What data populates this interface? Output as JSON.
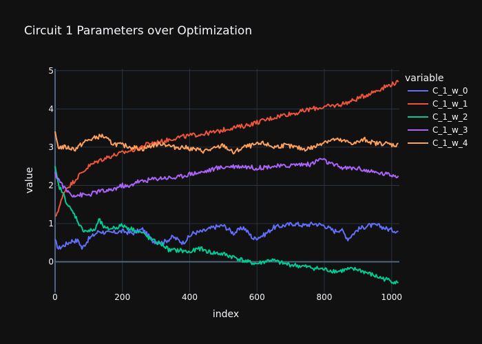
{
  "chart_data": {
    "type": "line",
    "title": "Circuit 1 Parameters over Optimization",
    "xlabel": "index",
    "ylabel": "value",
    "xlim": [
      0,
      1023
    ],
    "ylim": [
      -0.8,
      5.05
    ],
    "x_ticks": [
      "0",
      "200",
      "400",
      "600",
      "800",
      "1000"
    ],
    "y_ticks": [
      "0",
      "1",
      "2",
      "3",
      "4",
      "5"
    ],
    "grid": true,
    "legend": {
      "title": "variable",
      "position": "right"
    },
    "background": "#111111",
    "gridColor": "#283442",
    "series": [
      {
        "name": "C_1_w_0",
        "color": "#636efa",
        "points": [
          [
            0,
            0.55
          ],
          [
            10,
            0.35
          ],
          [
            30,
            0.45
          ],
          [
            50,
            0.55
          ],
          [
            70,
            0.55
          ],
          [
            80,
            0.35
          ],
          [
            100,
            0.6
          ],
          [
            130,
            0.8
          ],
          [
            160,
            0.75
          ],
          [
            200,
            0.8
          ],
          [
            230,
            0.75
          ],
          [
            260,
            0.85
          ],
          [
            290,
            0.55
          ],
          [
            320,
            0.5
          ],
          [
            350,
            0.65
          ],
          [
            380,
            0.5
          ],
          [
            410,
            0.75
          ],
          [
            440,
            0.8
          ],
          [
            470,
            0.9
          ],
          [
            500,
            0.95
          ],
          [
            530,
            0.75
          ],
          [
            560,
            0.9
          ],
          [
            590,
            0.6
          ],
          [
            620,
            0.7
          ],
          [
            650,
            0.9
          ],
          [
            680,
            0.95
          ],
          [
            710,
            1.0
          ],
          [
            740,
            0.95
          ],
          [
            770,
            1.0
          ],
          [
            800,
            0.95
          ],
          [
            830,
            0.8
          ],
          [
            850,
            0.85
          ],
          [
            870,
            0.6
          ],
          [
            900,
            0.85
          ],
          [
            930,
            0.95
          ],
          [
            960,
            0.95
          ],
          [
            990,
            0.85
          ],
          [
            1020,
            0.8
          ]
        ]
      },
      {
        "name": "C_1_w_1",
        "color": "#ef553b",
        "points": [
          [
            0,
            1.15
          ],
          [
            15,
            1.5
          ],
          [
            30,
            1.9
          ],
          [
            50,
            2.05
          ],
          [
            70,
            2.25
          ],
          [
            100,
            2.5
          ],
          [
            130,
            2.65
          ],
          [
            160,
            2.75
          ],
          [
            200,
            2.85
          ],
          [
            240,
            2.95
          ],
          [
            280,
            3.1
          ],
          [
            320,
            3.15
          ],
          [
            360,
            3.25
          ],
          [
            400,
            3.3
          ],
          [
            440,
            3.35
          ],
          [
            480,
            3.4
          ],
          [
            520,
            3.5
          ],
          [
            560,
            3.55
          ],
          [
            600,
            3.65
          ],
          [
            640,
            3.75
          ],
          [
            680,
            3.85
          ],
          [
            720,
            3.9
          ],
          [
            760,
            4.0
          ],
          [
            800,
            4.05
          ],
          [
            840,
            4.1
          ],
          [
            880,
            4.2
          ],
          [
            920,
            4.35
          ],
          [
            960,
            4.5
          ],
          [
            1000,
            4.65
          ],
          [
            1020,
            4.7
          ]
        ]
      },
      {
        "name": "C_1_w_2",
        "color": "#00cc96",
        "points": [
          [
            0,
            2.45
          ],
          [
            10,
            2.0
          ],
          [
            20,
            1.85
          ],
          [
            40,
            1.45
          ],
          [
            60,
            1.2
          ],
          [
            80,
            0.85
          ],
          [
            100,
            0.8
          ],
          [
            120,
            0.85
          ],
          [
            130,
            1.1
          ],
          [
            150,
            0.85
          ],
          [
            180,
            0.9
          ],
          [
            200,
            0.95
          ],
          [
            230,
            0.85
          ],
          [
            260,
            0.75
          ],
          [
            290,
            0.55
          ],
          [
            320,
            0.45
          ],
          [
            340,
            0.3
          ],
          [
            370,
            0.3
          ],
          [
            400,
            0.25
          ],
          [
            430,
            0.35
          ],
          [
            460,
            0.25
          ],
          [
            500,
            0.2
          ],
          [
            540,
            0.1
          ],
          [
            570,
            0.0
          ],
          [
            600,
            -0.05
          ],
          [
            640,
            0.05
          ],
          [
            680,
            -0.05
          ],
          [
            720,
            -0.1
          ],
          [
            760,
            -0.15
          ],
          [
            800,
            -0.2
          ],
          [
            840,
            -0.25
          ],
          [
            870,
            -0.2
          ],
          [
            900,
            -0.2
          ],
          [
            930,
            -0.3
          ],
          [
            960,
            -0.4
          ],
          [
            1000,
            -0.5
          ],
          [
            1020,
            -0.55
          ]
        ]
      },
      {
        "name": "C_1_w_3",
        "color": "#ab63fa",
        "points": [
          [
            0,
            2.3
          ],
          [
            15,
            2.1
          ],
          [
            30,
            1.9
          ],
          [
            50,
            1.75
          ],
          [
            70,
            1.75
          ],
          [
            100,
            1.75
          ],
          [
            130,
            1.85
          ],
          [
            160,
            1.85
          ],
          [
            200,
            2.0
          ],
          [
            220,
            1.95
          ],
          [
            240,
            2.1
          ],
          [
            260,
            2.1
          ],
          [
            280,
            2.15
          ],
          [
            320,
            2.2
          ],
          [
            360,
            2.2
          ],
          [
            400,
            2.3
          ],
          [
            440,
            2.35
          ],
          [
            480,
            2.45
          ],
          [
            520,
            2.5
          ],
          [
            560,
            2.5
          ],
          [
            600,
            2.45
          ],
          [
            640,
            2.5
          ],
          [
            680,
            2.5
          ],
          [
            720,
            2.55
          ],
          [
            760,
            2.55
          ],
          [
            790,
            2.7
          ],
          [
            820,
            2.55
          ],
          [
            860,
            2.45
          ],
          [
            900,
            2.45
          ],
          [
            940,
            2.35
          ],
          [
            980,
            2.3
          ],
          [
            1020,
            2.25
          ]
        ]
      },
      {
        "name": "C_1_w_4",
        "color": "#ffa15a",
        "points": [
          [
            0,
            3.35
          ],
          [
            10,
            3.0
          ],
          [
            30,
            3.0
          ],
          [
            60,
            2.95
          ],
          [
            90,
            3.15
          ],
          [
            120,
            3.25
          ],
          [
            140,
            3.3
          ],
          [
            170,
            3.1
          ],
          [
            200,
            3.05
          ],
          [
            230,
            3.0
          ],
          [
            260,
            2.95
          ],
          [
            290,
            3.05
          ],
          [
            320,
            3.1
          ],
          [
            350,
            3.0
          ],
          [
            380,
            3.0
          ],
          [
            410,
            2.95
          ],
          [
            440,
            2.9
          ],
          [
            470,
            2.95
          ],
          [
            500,
            3.05
          ],
          [
            530,
            2.85
          ],
          [
            560,
            3.0
          ],
          [
            590,
            3.05
          ],
          [
            620,
            3.1
          ],
          [
            650,
            3.0
          ],
          [
            680,
            3.05
          ],
          [
            710,
            3.0
          ],
          [
            740,
            2.95
          ],
          [
            770,
            3.0
          ],
          [
            800,
            3.15
          ],
          [
            830,
            3.2
          ],
          [
            860,
            3.15
          ],
          [
            890,
            3.1
          ],
          [
            920,
            3.2
          ],
          [
            950,
            3.1
          ],
          [
            980,
            3.1
          ],
          [
            1010,
            3.05
          ],
          [
            1020,
            3.1
          ]
        ]
      }
    ]
  }
}
